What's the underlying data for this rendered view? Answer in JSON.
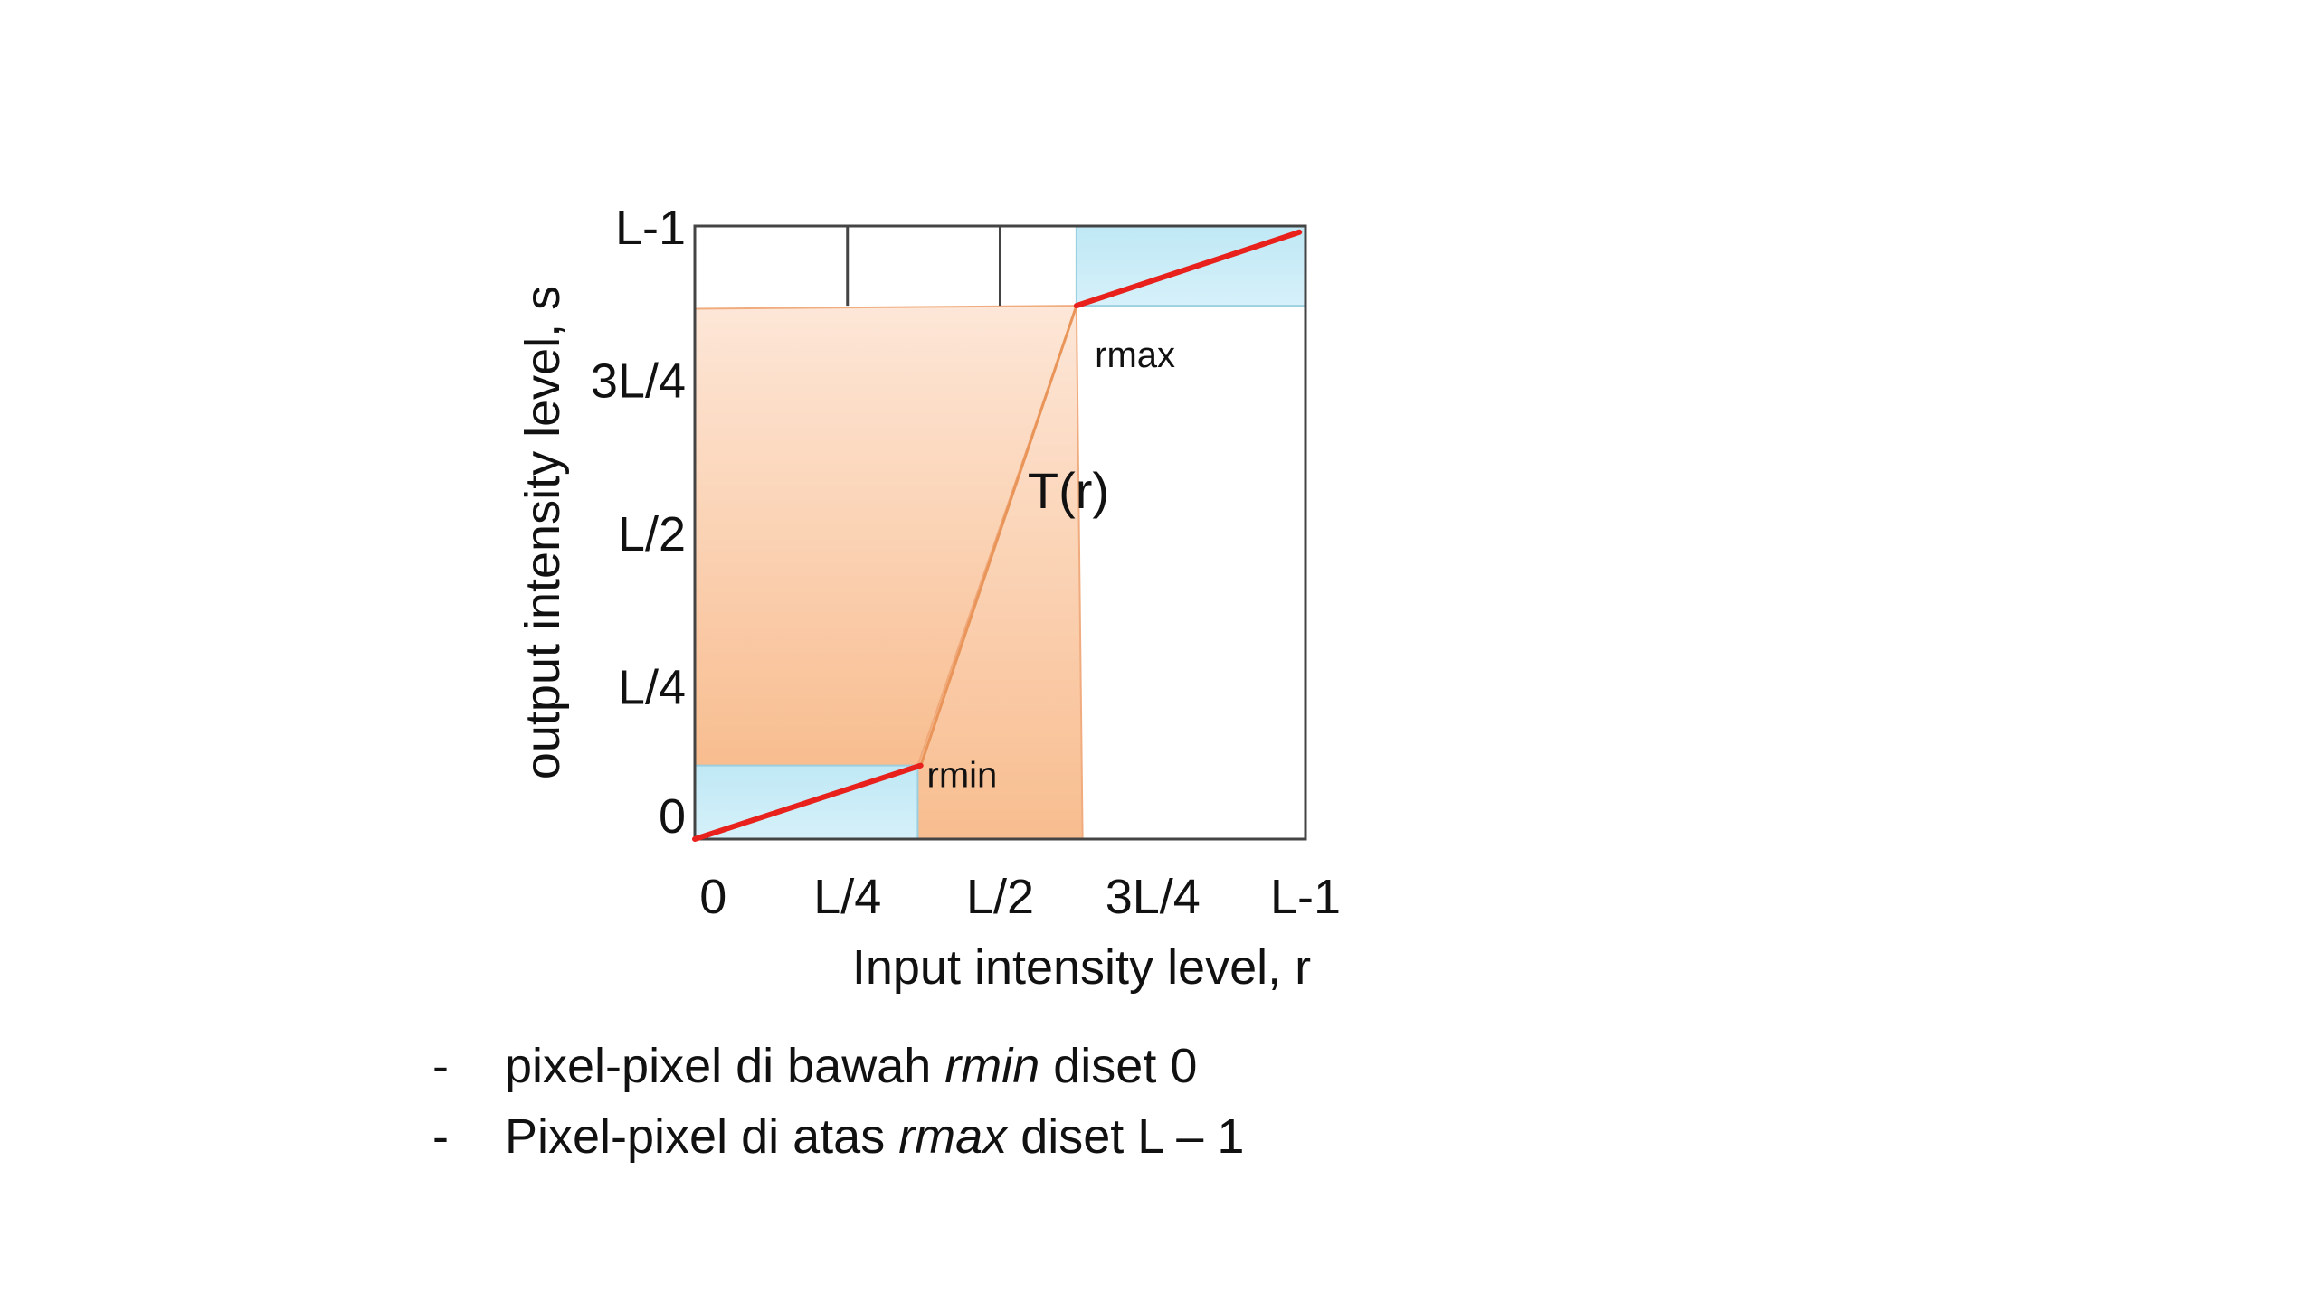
{
  "chart_data": {
    "type": "line",
    "xlabel": "Input intensity level, r",
    "ylabel": "output intensity level, s",
    "xlim": [
      0,
      1
    ],
    "ylim": [
      0,
      1
    ],
    "x_ticks": [
      {
        "label": "0",
        "value": 0.03
      },
      {
        "label": "L/4",
        "value": 0.25
      },
      {
        "label": "L/2",
        "value": 0.5
      },
      {
        "label": "3L/4",
        "value": 0.75
      },
      {
        "label": "L-1",
        "value": 1.0
      }
    ],
    "y_ticks": [
      {
        "label": "0",
        "value": 0.04
      },
      {
        "label": "L/4",
        "value": 0.25
      },
      {
        "label": "L/2",
        "value": 0.5
      },
      {
        "label": "3L/4",
        "value": 0.75
      },
      {
        "label": "L-1",
        "value": 1.0
      }
    ],
    "grid_x_top": [
      0.25,
      0.5
    ],
    "series": [
      {
        "name": "T(r)",
        "x": [
          0.0,
          0.37,
          0.625,
          0.99
        ],
        "y": [
          0.0,
          0.12,
          0.87,
          0.99
        ]
      }
    ],
    "red_segments": [
      {
        "x": [
          0.0,
          0.37
        ],
        "y": [
          0.0,
          0.12
        ]
      },
      {
        "x": [
          0.625,
          0.99
        ],
        "y": [
          0.87,
          0.99
        ]
      }
    ],
    "blue_regions": [
      {
        "x": [
          0.0,
          0.365
        ],
        "y": [
          0.0,
          0.12
        ]
      },
      {
        "x": [
          0.625,
          1.0
        ],
        "y": [
          0.87,
          1.0
        ]
      }
    ],
    "orange_regions": [
      {
        "points": [
          [
            0.0,
            0.12
          ],
          [
            0.37,
            0.12
          ],
          [
            0.625,
            0.87
          ],
          [
            0.0,
            0.865
          ]
        ]
      },
      {
        "points": [
          [
            0.365,
            0.0
          ],
          [
            0.365,
            0.12
          ],
          [
            0.625,
            0.87
          ],
          [
            0.635,
            0.0
          ]
        ]
      }
    ],
    "annotations": [
      {
        "text": "T(r)",
        "x": 0.545,
        "y": 0.54,
        "style": "curve-name"
      },
      {
        "text": "rmin",
        "x": 0.38,
        "y": 0.085,
        "style": "point-label"
      },
      {
        "text": "rmax",
        "x": 0.655,
        "y": 0.77,
        "style": "point-label"
      }
    ],
    "colors": {
      "curve": "#e8211c",
      "region_blue": "#bfe8f5",
      "region_orange_top": "#fde6d6",
      "region_orange_bottom": "#f8ba8a",
      "axis": "#444444"
    }
  },
  "notes": [
    {
      "dash": "-",
      "before": "pixel-pixel di bawah ",
      "emph": "rmin",
      "after": " diset 0"
    },
    {
      "dash": "-",
      "before": "Pixel-pixel di atas ",
      "emph": "rmax",
      "after": " diset L – 1"
    }
  ]
}
